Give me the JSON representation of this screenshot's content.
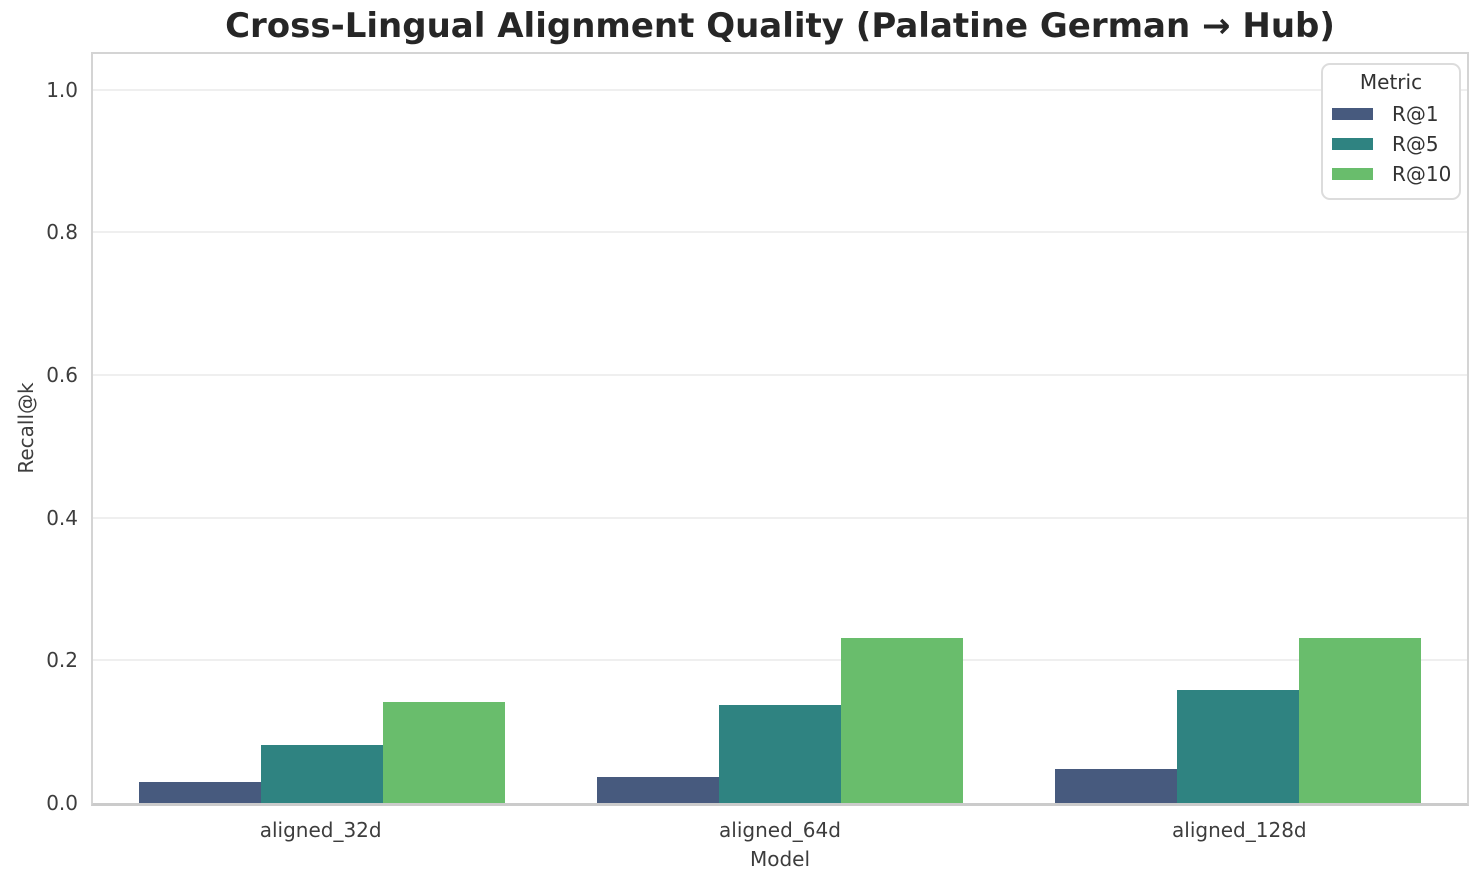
{
  "chart_data": {
    "type": "bar",
    "title": "Cross-Lingual Alignment Quality (Palatine German → Hub)",
    "xlabel": "Model",
    "ylabel": "Recall@k",
    "categories": [
      "aligned_32d",
      "aligned_64d",
      "aligned_128d"
    ],
    "series": [
      {
        "name": "R@1",
        "color": "#475a7e",
        "values": [
          0.03,
          0.036,
          0.048
        ]
      },
      {
        "name": "R@5",
        "color": "#2f8381",
        "values": [
          0.082,
          0.138,
          0.158
        ]
      },
      {
        "name": "R@10",
        "color": "#69bd6c",
        "values": [
          0.141,
          0.232,
          0.232
        ]
      }
    ],
    "ylim": [
      0,
      1.05
    ],
    "yticks": [
      "0.0",
      "0.2",
      "0.4",
      "0.6",
      "0.8",
      "1.0"
    ],
    "legend": {
      "title": "Metric",
      "position": "upper right"
    },
    "grid": "horizontal",
    "bar_group_width_fraction": 0.8
  }
}
